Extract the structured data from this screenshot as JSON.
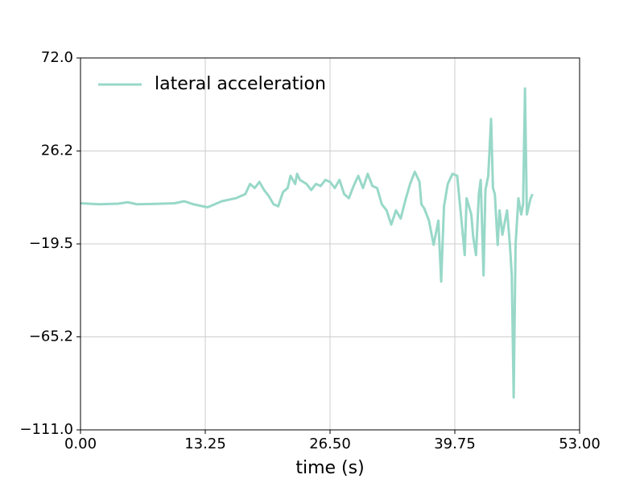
{
  "chart_data": {
    "type": "line",
    "xlabel": "time (s)",
    "x": [
      0,
      2,
      4,
      5,
      6,
      8,
      10,
      11,
      12,
      13.5,
      15,
      16.5,
      17.5,
      18,
      18.5,
      19,
      19.5,
      20,
      20.5,
      21,
      21.5,
      22,
      22.3,
      22.8,
      23,
      23.3,
      24,
      24.5,
      25,
      25.5,
      26,
      26.5,
      27,
      27.5,
      28,
      28.5,
      29,
      29.5,
      30,
      30.5,
      31,
      31.5,
      32,
      32.5,
      33,
      33.5,
      34,
      34.5,
      35,
      35.5,
      36,
      36.2,
      36.5,
      37,
      37.5,
      38,
      38.3,
      38.6,
      39,
      39.5,
      40,
      40.5,
      40.8,
      41,
      41.5,
      41.7,
      42,
      42.3,
      42.5,
      42.8,
      43,
      43.3,
      43.6,
      43.8,
      44,
      44.3,
      44.5,
      44.8,
      45,
      45.3,
      45.6,
      45.8,
      46,
      46.2,
      46.5,
      46.8,
      47,
      47.2,
      47.4,
      47.8,
      48
    ],
    "series": [
      {
        "name": "lateral acceleration",
        "color": "#98d8c8",
        "values": [
          0.5,
          0,
          0.3,
          1,
          0,
          0.2,
          0.5,
          1.5,
          0,
          -1.5,
          1.5,
          3,
          5,
          10,
          8,
          11,
          7,
          4,
          0,
          -1,
          6,
          8,
          14,
          10,
          15,
          12,
          10,
          7,
          10,
          9,
          12,
          11,
          8,
          12,
          5,
          3,
          9,
          14,
          8,
          15,
          9,
          8,
          0,
          -3,
          -10,
          -3,
          -7,
          2,
          10,
          16,
          11,
          0,
          -2,
          -8,
          -20,
          -8,
          -38,
          -1,
          10,
          15,
          14,
          -10,
          -25,
          3,
          -5,
          -16,
          -25,
          5,
          12,
          -35,
          7,
          14,
          42,
          8,
          5,
          -20,
          -3,
          -15,
          -10,
          -3,
          -20,
          -35,
          -95,
          -20,
          3,
          -5,
          0,
          57,
          -5,
          3,
          5
        ]
      }
    ],
    "xlim": [
      0,
      53
    ],
    "xticks": [
      {
        "value": 0,
        "label": "0.00"
      },
      13.25,
      {
        "value": 26.5,
        "label": "26.50"
      },
      39.75,
      {
        "value": 53,
        "label": "53.00"
      }
    ],
    "ylim": [
      -111,
      72
    ],
    "yticks": [
      {
        "value": -111,
        "label": "−111.0"
      },
      {
        "value": -65.2,
        "label": "−65.2"
      },
      {
        "value": -19.5,
        "label": "−19.5"
      },
      26.2,
      {
        "value": 72,
        "label": "72.0"
      }
    ],
    "grid": true,
    "legend": "upper left"
  }
}
